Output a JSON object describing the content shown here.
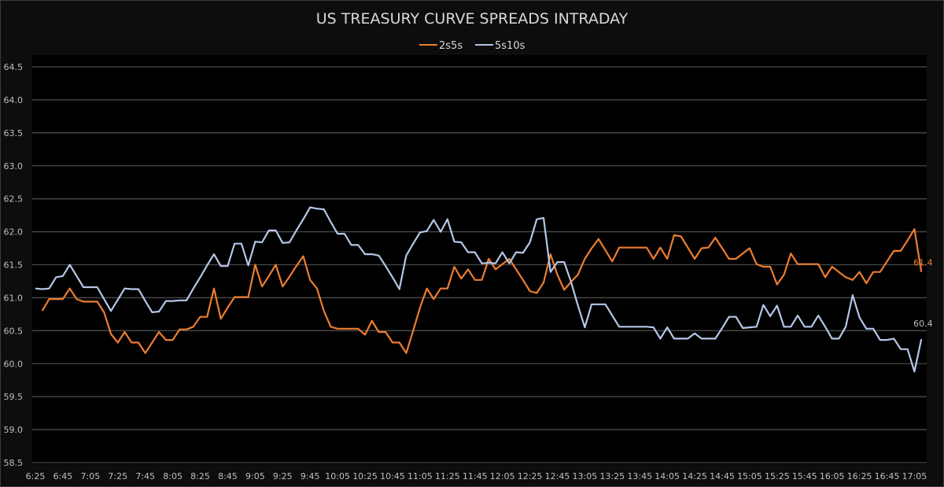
{
  "chart_data": {
    "type": "line",
    "title": "US TREASURY CURVE SPREADS INTRADAY",
    "xlabel": "",
    "ylabel": "",
    "x_start": "6:25",
    "x_interval_minutes": 5,
    "x_tick_labels": [
      "6:25",
      "6:45",
      "7:05",
      "7:25",
      "7:45",
      "8:05",
      "8:25",
      "8:45",
      "9:05",
      "9:25",
      "9:45",
      "10:05",
      "10:25",
      "10:45",
      "11:05",
      "11:25",
      "11:45",
      "12:05",
      "12:25",
      "12:45",
      "13:05",
      "13:25",
      "13:45",
      "14:05",
      "14:25",
      "14:45",
      "15:05",
      "15:25",
      "15:45",
      "16:05",
      "16:25",
      "16:45",
      "17:05"
    ],
    "y_ticks": [
      "58.5",
      "59.0",
      "59.5",
      "60.0",
      "60.5",
      "61.0",
      "61.5",
      "62.0",
      "62.5",
      "63.0",
      "63.5",
      "64.0",
      "64.5"
    ],
    "ylim": [
      58.5,
      64.5
    ],
    "grid": "horizontal",
    "legend_position": "top",
    "series": [
      {
        "name": "2s5s",
        "color": "#ED7D31",
        "end_label": "61.4",
        "values": [
          null,
          60.8,
          60.98,
          60.98,
          60.98,
          61.14,
          60.98,
          60.94,
          60.94,
          60.94,
          60.78,
          60.45,
          60.32,
          60.48,
          60.32,
          60.32,
          60.16,
          60.32,
          60.48,
          60.36,
          60.36,
          60.52,
          60.52,
          60.56,
          60.71,
          60.71,
          61.14,
          60.68,
          60.85,
          61.01,
          61.01,
          61.01,
          61.5,
          61.17,
          61.33,
          61.5,
          61.17,
          61.32,
          61.48,
          61.63,
          61.27,
          61.14,
          60.8,
          60.56,
          60.53,
          60.53,
          60.53,
          60.53,
          60.44,
          60.65,
          60.48,
          60.48,
          60.32,
          60.32,
          60.16,
          60.5,
          60.85,
          61.14,
          60.98,
          61.14,
          61.14,
          61.47,
          61.29,
          61.43,
          61.27,
          61.27,
          61.59,
          61.43,
          61.51,
          61.59,
          61.43,
          61.27,
          61.1,
          61.07,
          61.23,
          61.66,
          61.35,
          61.12,
          61.24,
          61.35,
          61.59,
          61.75,
          61.89,
          61.72,
          61.55,
          61.76,
          61.76,
          61.76,
          61.76,
          61.76,
          61.59,
          61.76,
          61.59,
          61.95,
          61.93,
          61.76,
          61.59,
          61.75,
          61.76,
          61.91,
          61.75,
          61.59,
          61.59,
          61.67,
          61.75,
          61.51,
          61.47,
          61.47,
          61.2,
          61.35,
          61.67,
          61.51,
          61.51,
          61.51,
          61.51,
          61.31,
          61.47,
          61.39,
          61.31,
          61.27,
          61.39,
          61.22,
          61.39,
          61.39,
          61.55,
          61.71,
          61.71,
          61.87,
          62.04,
          61.39
        ]
      },
      {
        "name": "5s10s",
        "color": "#B4C7E7",
        "end_label": "60.4",
        "values": [
          61.14,
          61.13,
          61.14,
          61.31,
          61.33,
          61.5,
          61.33,
          61.16,
          61.16,
          61.16,
          60.98,
          60.8,
          60.97,
          61.14,
          61.13,
          61.13,
          60.95,
          60.78,
          60.79,
          60.95,
          60.95,
          60.96,
          60.96,
          61.14,
          61.31,
          61.49,
          61.66,
          61.48,
          61.48,
          61.82,
          61.82,
          61.49,
          61.85,
          61.84,
          62.02,
          62.02,
          61.83,
          61.84,
          62.02,
          62.19,
          62.37,
          62.35,
          62.34,
          62.15,
          61.97,
          61.97,
          61.8,
          61.8,
          61.66,
          61.66,
          61.64,
          61.48,
          61.31,
          61.13,
          61.64,
          61.82,
          61.99,
          62.01,
          62.18,
          62.0,
          62.19,
          61.85,
          61.84,
          61.69,
          61.69,
          61.52,
          61.53,
          61.52,
          61.69,
          61.52,
          61.69,
          61.68,
          61.84,
          62.19,
          62.21,
          61.39,
          61.54,
          61.54,
          61.24,
          60.88,
          60.55,
          60.9,
          60.9,
          60.9,
          60.73,
          60.56,
          60.56,
          60.56,
          60.56,
          60.56,
          60.55,
          60.38,
          60.55,
          60.38,
          60.38,
          60.38,
          60.46,
          60.38,
          60.38,
          60.38,
          60.54,
          60.71,
          60.71,
          60.54,
          60.55,
          60.56,
          60.89,
          60.72,
          60.88,
          60.56,
          60.56,
          60.73,
          60.56,
          60.56,
          60.73,
          60.56,
          60.38,
          60.38,
          60.56,
          61.04,
          60.7,
          60.53,
          60.53,
          60.36,
          60.36,
          60.38,
          60.22,
          60.22,
          59.88,
          60.37
        ]
      }
    ]
  }
}
